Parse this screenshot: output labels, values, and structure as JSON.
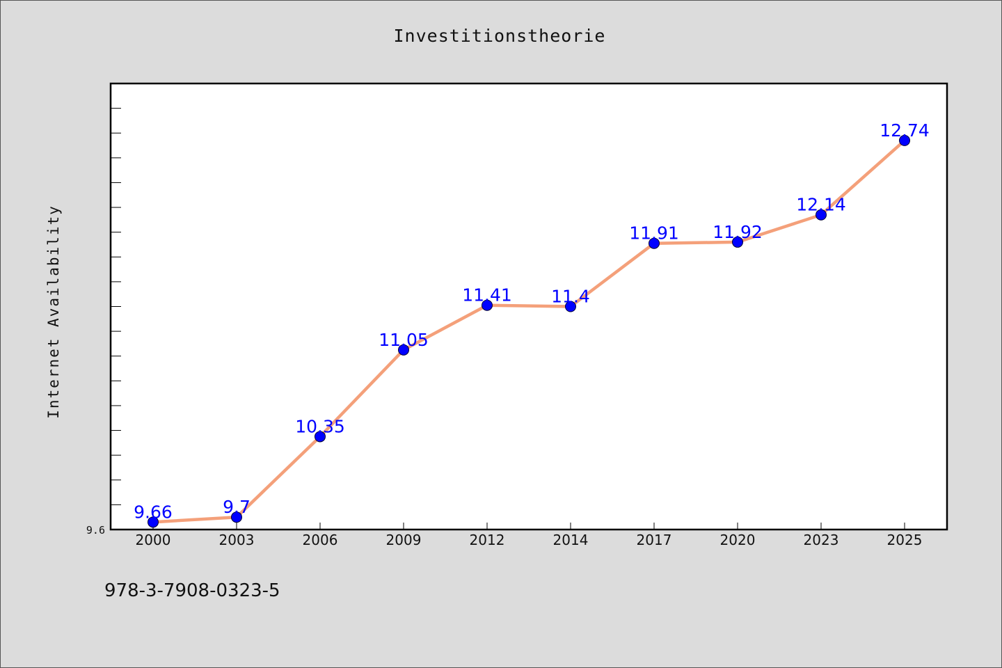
{
  "chart_data": {
    "type": "line",
    "title": "Investitionstheorie",
    "xlabel": "",
    "ylabel": "Internet Availability",
    "categories": [
      "2000",
      "2003",
      "2006",
      "2009",
      "2012",
      "2014",
      "2017",
      "2020",
      "2023",
      "2025"
    ],
    "series": [
      {
        "values": [
          9.66,
          9.7,
          10.35,
          11.05,
          11.41,
          11.4,
          11.91,
          11.92,
          12.14,
          12.74
        ],
        "labels": [
          "9.66",
          "9.7",
          "10.35",
          "11.05",
          "11.41",
          "11.4",
          "11.91",
          "11.92",
          "12.14",
          "12.74"
        ],
        "line_color": "#f4a07a",
        "marker_color": "#0000ff"
      }
    ],
    "ylim": [
      9.6,
      13.2
    ],
    "y_tick_labels": [
      "9.6"
    ],
    "grid": false,
    "plot_background": "#ffffff",
    "page_background": "#dcdcdc"
  },
  "footer": {
    "isbn": "978-3-7908-0323-5"
  }
}
